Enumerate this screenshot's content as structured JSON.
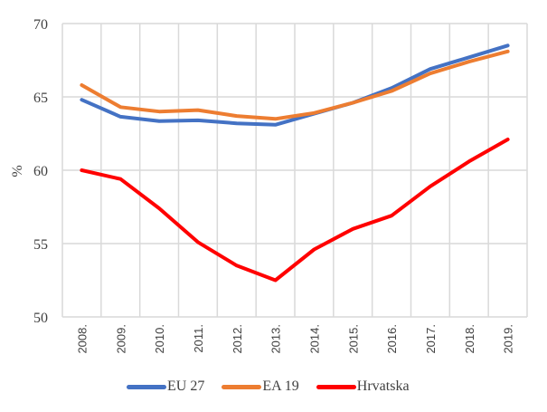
{
  "chart_data": {
    "type": "line",
    "title": "",
    "xlabel": "",
    "ylabel": "%",
    "ylim": [
      50,
      70
    ],
    "yticks": [
      50,
      55,
      60,
      65,
      70
    ],
    "grid": true,
    "legend_position": "bottom",
    "categories": [
      "2008.",
      "2009.",
      "2010.",
      "2011.",
      "2012.",
      "2013.",
      "2014.",
      "2015.",
      "2016.",
      "2017.",
      "2018.",
      "2019."
    ],
    "series": [
      {
        "name": "EU 27",
        "color": "#4472c4",
        "values": [
          64.8,
          63.65,
          63.35,
          63.4,
          63.2,
          63.1,
          63.85,
          64.6,
          65.6,
          66.9,
          67.7,
          68.5
        ]
      },
      {
        "name": "EA 19",
        "color": "#ed7d31",
        "values": [
          65.8,
          64.3,
          64.0,
          64.1,
          63.7,
          63.5,
          63.9,
          64.6,
          65.4,
          66.6,
          67.4,
          68.1
        ]
      },
      {
        "name": "Hrvatska",
        "color": "#ff0000",
        "values": [
          60.0,
          59.4,
          57.4,
          55.1,
          53.5,
          52.5,
          54.6,
          56.0,
          56.9,
          58.9,
          60.6,
          62.1
        ]
      }
    ]
  }
}
